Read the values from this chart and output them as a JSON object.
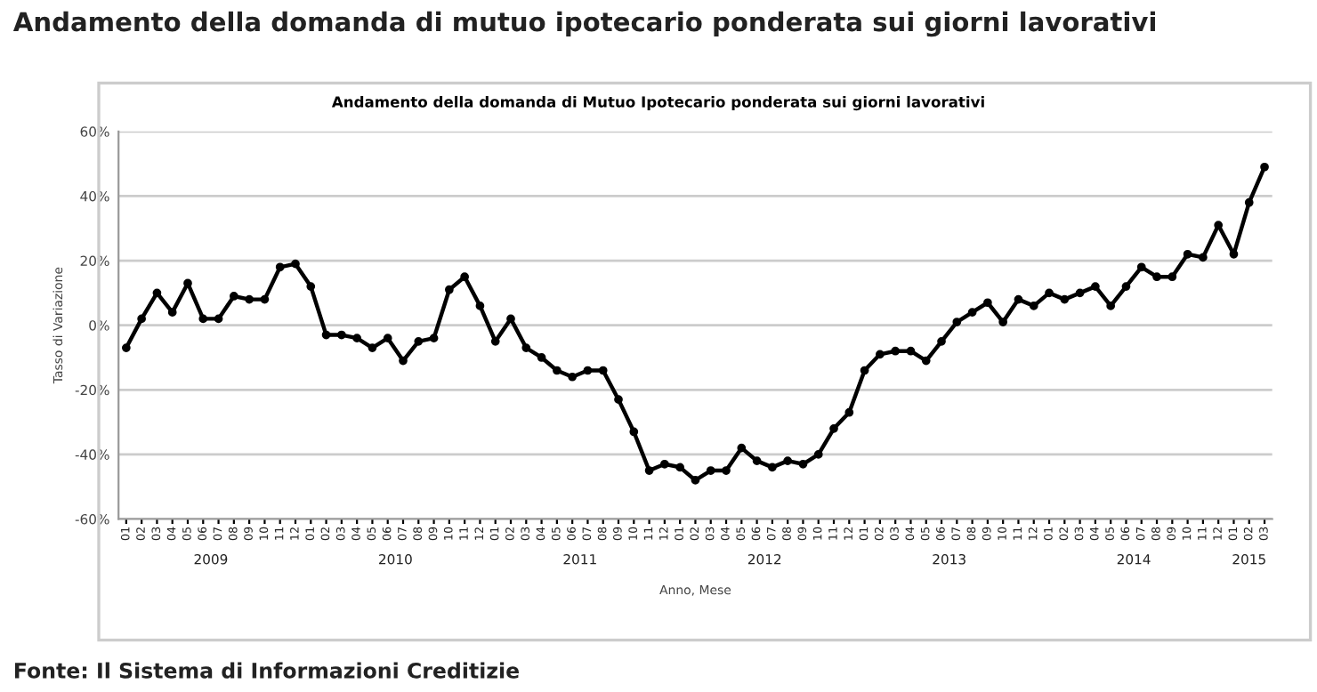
{
  "chart_data": {
    "type": "line",
    "title": "Andamento della domanda di mutuo ipotecario ponderata sui giorni lavorativi",
    "subtitle": "Andamento della domanda di Mutuo Ipotecario ponderata sui giorni lavorativi",
    "xlabel": "Anno, Mese",
    "ylabel": "Tasso di Variazione",
    "categories": [
      "01",
      "02",
      "03",
      "04",
      "05",
      "06",
      "07",
      "08",
      "09",
      "10",
      "11",
      "12",
      "01",
      "02",
      "03",
      "04",
      "05",
      "06",
      "07",
      "08",
      "09",
      "10",
      "11",
      "12",
      "01",
      "02",
      "03",
      "04",
      "05",
      "06",
      "07",
      "08",
      "09",
      "10",
      "11",
      "12",
      "01",
      "02",
      "03",
      "04",
      "05",
      "06",
      "07",
      "08",
      "09",
      "10",
      "11",
      "12",
      "01",
      "02",
      "03",
      "04",
      "05",
      "06",
      "07",
      "08",
      "09",
      "10",
      "11",
      "12",
      "01",
      "02",
      "03",
      "04",
      "05",
      "06",
      "07",
      "08",
      "09",
      "10",
      "11",
      "12",
      "01",
      "02",
      "03"
    ],
    "series": [
      {
        "color": "#000000",
        "values": [
          -7,
          2,
          10,
          4,
          13,
          2,
          2,
          9,
          8,
          8,
          18,
          19,
          12,
          -3,
          -3,
          -4,
          -7,
          -4,
          -11,
          -5,
          -4,
          11,
          15,
          6,
          -5,
          2,
          -7,
          -10,
          -14,
          -16,
          -14,
          -14,
          -23,
          -33,
          -45,
          -43,
          -44,
          -48,
          -45,
          -45,
          -38,
          -42,
          -44,
          -42,
          -43,
          -40,
          -32,
          -27,
          -14,
          -9,
          -8,
          -8,
          -11,
          -5,
          1,
          4,
          7,
          1,
          8,
          6,
          10,
          8,
          10,
          12,
          6,
          12,
          18,
          15,
          15,
          22,
          21,
          31,
          22,
          38,
          49
        ]
      }
    ],
    "ylim": [
      -60,
      60
    ],
    "yticks": [
      {
        "value": -60,
        "label": "-60%"
      },
      {
        "value": -40,
        "label": "-40%"
      },
      {
        "value": -20,
        "label": "-20%"
      },
      {
        "value": 0,
        "label": "0%"
      },
      {
        "value": 20,
        "label": "20%"
      },
      {
        "value": 40,
        "label": "40%"
      },
      {
        "value": 60,
        "label": "60%"
      }
    ],
    "grid": "y",
    "marker": "circle",
    "line_style": "solid",
    "legend": false,
    "annotations": [
      "2009",
      "2010",
      "2011",
      "2012",
      "2013",
      "2014",
      "2015",
      "Fonte: Il Sistema di Informazioni Creditizie"
    ]
  }
}
